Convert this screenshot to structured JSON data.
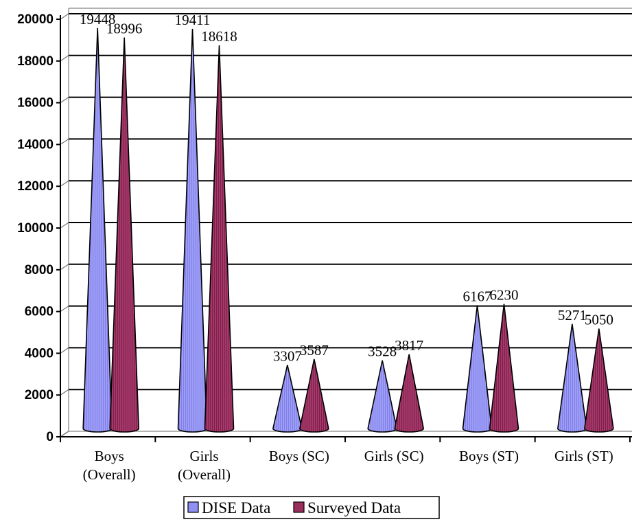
{
  "chart_data": {
    "type": "bar",
    "bar_shape": "cone",
    "categories": [
      [
        "Boys",
        "(Overall)"
      ],
      [
        "Girls",
        "(Overall)"
      ],
      [
        "Boys (SC)"
      ],
      [
        "Girls (SC)"
      ],
      [
        "Boys (ST)"
      ],
      [
        "Girls (ST)"
      ]
    ],
    "series": [
      {
        "name": "DISE Data",
        "color": "#8f8ff5",
        "values": [
          19448,
          19411,
          3307,
          3528,
          6167,
          5271
        ]
      },
      {
        "name": "Surveyed Data",
        "color": "#9a2f5e",
        "values": [
          18996,
          18618,
          3587,
          3817,
          6230,
          5050
        ]
      }
    ],
    "ylim": [
      0,
      20000
    ],
    "yticks": [
      "0",
      "2000",
      "4000",
      "6000",
      "8000",
      "10000",
      "12000",
      "14000",
      "16000",
      "18000",
      "20000"
    ],
    "grid": true,
    "legend_position": "bottom",
    "data_labels": true
  }
}
